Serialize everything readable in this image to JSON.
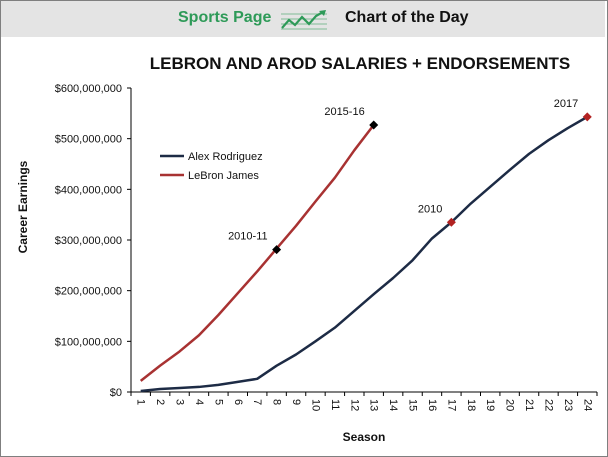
{
  "header": {
    "brand": "Sports Page",
    "section": "Chart of the Day",
    "icon": "trend-chart-icon",
    "brand_color": "#2e9a58"
  },
  "chart_data": {
    "type": "line",
    "title": "LEBRON AND AROD SALARIES + ENDORSEMENTS",
    "xlabel": "Season",
    "ylabel": "Career Earnings",
    "ylim": [
      0,
      600000000
    ],
    "yticks": [
      0,
      100000000,
      200000000,
      300000000,
      400000000,
      500000000,
      600000000
    ],
    "ytick_labels": [
      "$0",
      "$100,000,000",
      "$200,000,000",
      "$300,000,000",
      "$400,000,000",
      "$500,000,000",
      "$600,000,000"
    ],
    "x": [
      1,
      2,
      3,
      4,
      5,
      6,
      7,
      8,
      9,
      10,
      11,
      12,
      13,
      14,
      15,
      16,
      17,
      18,
      19,
      20,
      21,
      22,
      23,
      24
    ],
    "x_labels": [
      "1",
      "2",
      "3",
      "4",
      "5",
      "6",
      "7",
      "8",
      "9",
      "10",
      "11",
      "12",
      "13",
      "14",
      "15",
      "16",
      "17",
      "18",
      "19",
      "20",
      "21",
      "22",
      "23",
      "24"
    ],
    "grid": false,
    "legend_position": "upper-left",
    "series": [
      {
        "name": "Alex Rodriguez",
        "color": "#1d2b45",
        "x": [
          1,
          2,
          3,
          4,
          5,
          6,
          7,
          8,
          9,
          10,
          11,
          12,
          13,
          14,
          15,
          16,
          17,
          18,
          19,
          20,
          21,
          22,
          23,
          24
        ],
        "values": [
          2000000,
          6000000,
          8000000,
          10000000,
          14000000,
          20000000,
          26000000,
          52000000,
          74000000,
          100000000,
          127000000,
          160000000,
          193000000,
          225000000,
          260000000,
          303000000,
          335000000,
          372000000,
          405000000,
          438000000,
          470000000,
          497000000,
          521000000,
          543000000
        ]
      },
      {
        "name": "LeBron James",
        "color": "#a83232",
        "x": [
          1,
          2,
          3,
          4,
          5,
          6,
          7,
          8,
          9,
          10,
          11,
          12,
          13
        ],
        "values": [
          22000000,
          52000000,
          80000000,
          112000000,
          152000000,
          195000000,
          238000000,
          283000000,
          328000000,
          376000000,
          423000000,
          477000000,
          527000000
        ]
      }
    ],
    "annotations": [
      {
        "label": "2010-11",
        "x": 8,
        "y": 281000000,
        "marker_color": "#000000"
      },
      {
        "label": "2015-16",
        "x": 13,
        "y": 527000000,
        "marker_color": "#000000"
      },
      {
        "label": "2010",
        "x": 17,
        "y": 335000000,
        "marker_color": "#b22222"
      },
      {
        "label": "2017",
        "x": 24,
        "y": 543000000,
        "marker_color": "#b22222"
      }
    ]
  }
}
